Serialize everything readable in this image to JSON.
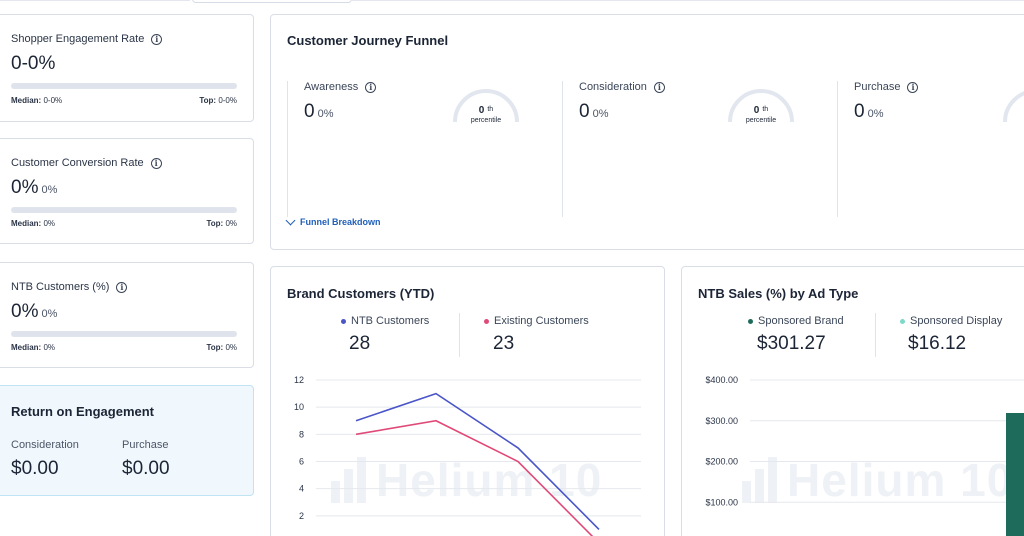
{
  "metrics": [
    {
      "title": "Shopper Engagement Rate",
      "value": "0-0%",
      "sub": "",
      "median_label": "Median:",
      "median_value": "0-0%",
      "top_label": "Top:",
      "top_value": "0-0%"
    },
    {
      "title": "Customer Conversion Rate",
      "value": "0%",
      "sub": "0%",
      "median_label": "Median:",
      "median_value": "0%",
      "top_label": "Top:",
      "top_value": "0%"
    },
    {
      "title": "NTB Customers (%)",
      "value": "0%",
      "sub": "0%",
      "median_label": "Median:",
      "median_value": "0%",
      "top_label": "Top:",
      "top_value": "0%"
    }
  ],
  "roe": {
    "title": "Return on Engagement",
    "consideration_label": "Consideration",
    "consideration_value": "$0.00",
    "purchase_label": "Purchase",
    "purchase_value": "$0.00"
  },
  "funnel": {
    "title": "Customer Journey Funnel",
    "stages": [
      {
        "label": "Awareness",
        "value": "0",
        "pct": "0%",
        "gauge_value": "0",
        "gauge_suffix": "th",
        "gauge_label": "percentile"
      },
      {
        "label": "Consideration",
        "value": "0",
        "pct": "0%",
        "gauge_value": "0",
        "gauge_suffix": "th",
        "gauge_label": "percentile"
      },
      {
        "label": "Purchase",
        "value": "0",
        "pct": "0%",
        "gauge_value": "",
        "gauge_suffix": "",
        "gauge_label": "p"
      }
    ],
    "breakdown_label": "Funnel Breakdown"
  },
  "brand_customers": {
    "title": "Brand Customers (YTD)",
    "legend": [
      {
        "name": "NTB Customers",
        "value": "28",
        "color": "#4a55c8"
      },
      {
        "name": "Existing Customers",
        "value": "23",
        "color": "#e04a78"
      }
    ],
    "y_ticks": [
      "12",
      "10",
      "8",
      "6",
      "4",
      "2"
    ]
  },
  "ntb_sales": {
    "title": "NTB Sales (%) by Ad Type",
    "legend": [
      {
        "name": "Sponsored Brand",
        "value": "$301.27",
        "color": "#1e6b5c"
      },
      {
        "name": "Sponsored Display",
        "value": "$16.12",
        "color": "#7fd8c8"
      }
    ],
    "y_ticks": [
      "$400.00",
      "$300.00",
      "$200.00",
      "$100.00"
    ]
  },
  "watermark": "Helium 10",
  "chart_data": [
    {
      "type": "line",
      "title": "Brand Customers (YTD)",
      "xlabel": "",
      "ylabel": "",
      "ylim": [
        0,
        12
      ],
      "grid": true,
      "x": [
        1,
        2,
        3,
        4
      ],
      "series": [
        {
          "name": "NTB Customers",
          "values": [
            9,
            11,
            7,
            1
          ],
          "color": "#4a55c8"
        },
        {
          "name": "Existing Customers",
          "values": [
            8,
            9,
            6,
            0
          ],
          "color": "#e04a78"
        }
      ]
    },
    {
      "type": "bar",
      "title": "NTB Sales (%) by Ad Type",
      "xlabel": "",
      "ylabel": "",
      "ylim": [
        0,
        400
      ],
      "grid": true,
      "categories": [
        "Sponsored Brand",
        "Sponsored Display"
      ],
      "values": [
        301.27,
        16.12
      ]
    }
  ]
}
